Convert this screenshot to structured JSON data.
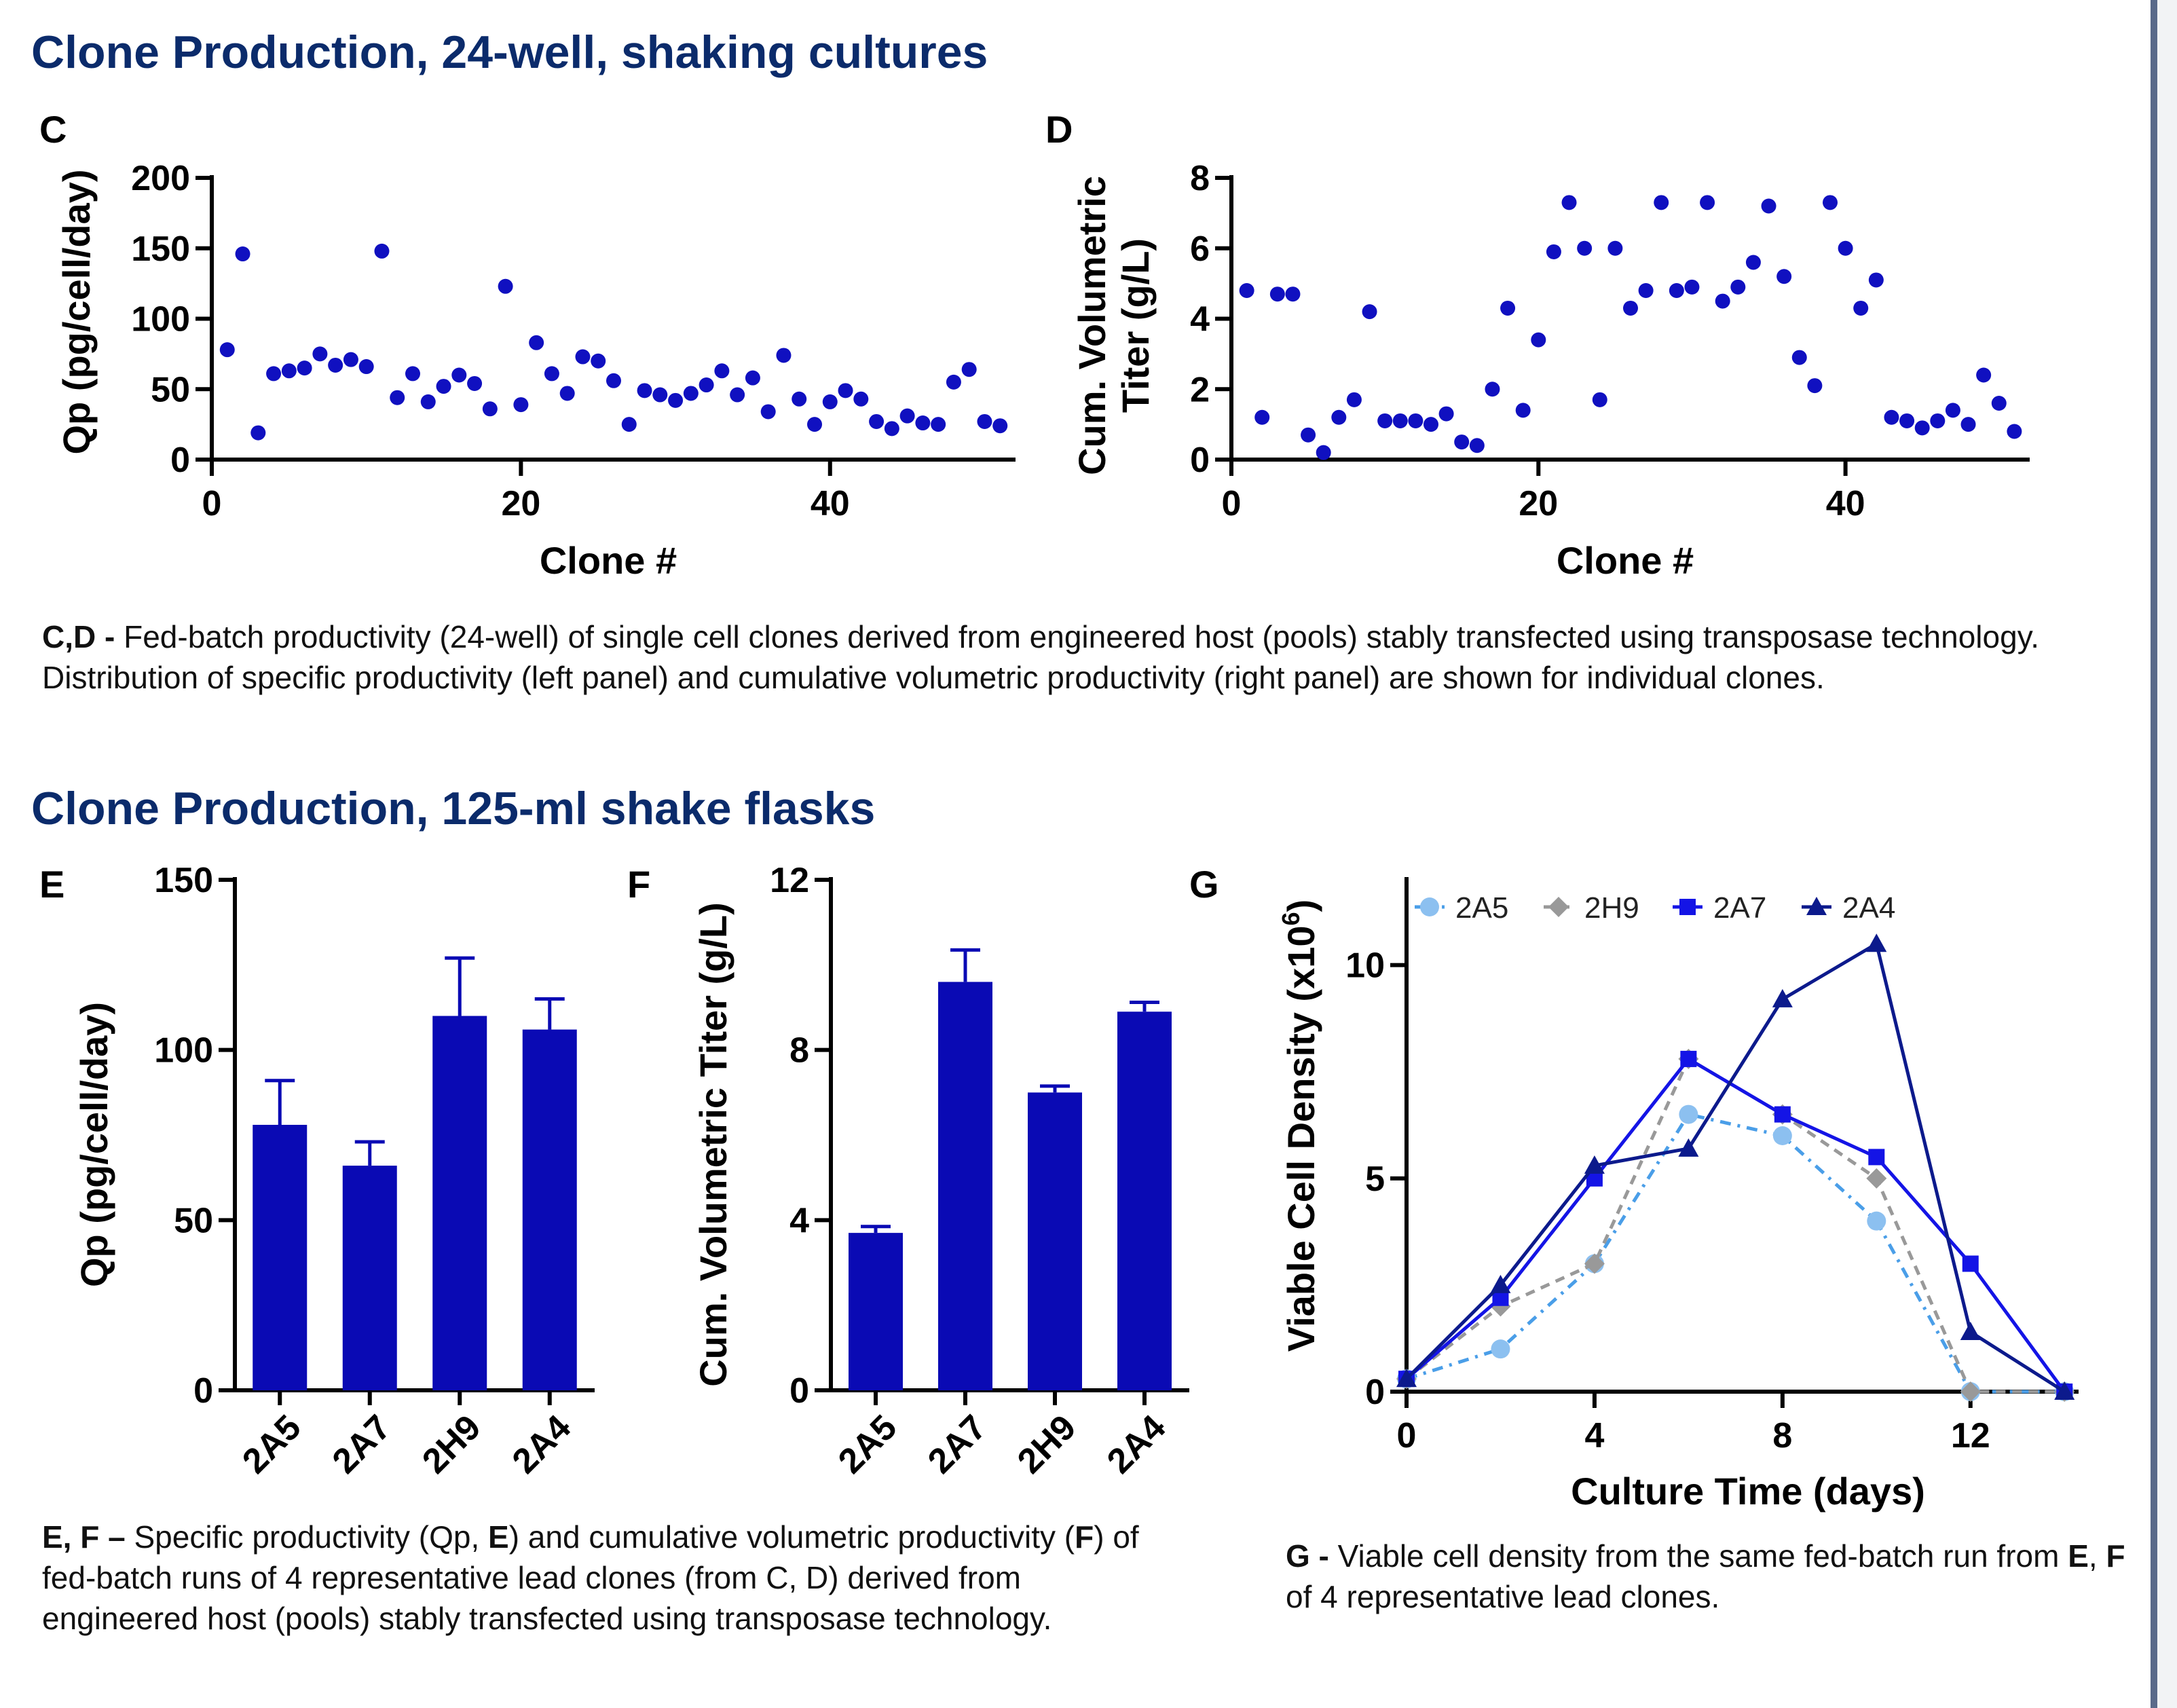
{
  "titles": {
    "top": "Clone Production, 24-well, shaking cultures",
    "bottom": "Clone Production, 125-ml shake flasks"
  },
  "captions": {
    "cd_lead": "C,D - ",
    "cd_text": "Fed-batch productivity (24-well) of single cell clones derived from engineered host (pools) stably transfected using transposase technology. Distribution of specific productivity (left panel) and cumulative volumetric productivity (right panel) are shown for individual clones.",
    "ef_lead": "E, F – ",
    "ef_t1": "Specific productivity (Qp, ",
    "ef_e": "E",
    "ef_t2": ") and cumulative volumetric productivity (",
    "ef_f": "F",
    "ef_t3": ") of fed-batch runs of 4 representative lead clones (from C, D) derived from engineered host (pools) stably transfected using transposase technology.",
    "g_lead": "G - ",
    "g_t1": "Viable cell density from the same fed-batch run from ",
    "g_e": "E",
    "g_t2": ", ",
    "g_f": "F",
    "g_t3": " of 4 representative lead clones."
  },
  "colors": {
    "title": "#0b2b6b",
    "scatter": "#1010c0",
    "bar": "#0a0ab4",
    "axis": "#000000"
  },
  "chart_data": [
    {
      "id": "C",
      "panel_label": "C",
      "type": "scatter",
      "xlabel": "Clone #",
      "ylabel": "Qp (pg/cell/day)",
      "xlim": [
        0,
        52
      ],
      "ylim": [
        0,
        200
      ],
      "xticks": [
        0,
        20,
        40
      ],
      "yticks": [
        0,
        50,
        100,
        150,
        200
      ],
      "x": [
        1,
        2,
        3,
        4,
        5,
        6,
        7,
        8,
        9,
        10,
        11,
        12,
        13,
        14,
        15,
        16,
        17,
        18,
        19,
        20,
        21,
        22,
        23,
        24,
        25,
        26,
        27,
        28,
        29,
        30,
        31,
        32,
        33,
        34,
        35,
        36,
        37,
        38,
        39,
        40,
        41,
        42,
        43,
        44,
        45,
        46,
        47,
        48,
        49,
        50,
        51
      ],
      "y": [
        78,
        146,
        19,
        61,
        63,
        65,
        75,
        67,
        71,
        66,
        148,
        44,
        61,
        41,
        52,
        60,
        54,
        36,
        123,
        39,
        83,
        61,
        47,
        73,
        70,
        56,
        25,
        49,
        46,
        42,
        47,
        53,
        63,
        46,
        58,
        34,
        74,
        43,
        25,
        41,
        49,
        43,
        27,
        22,
        31,
        26,
        25,
        55,
        64,
        27,
        24
      ]
    },
    {
      "id": "D",
      "panel_label": "D",
      "type": "scatter",
      "xlabel": "Clone #",
      "ylabel_lines": [
        "Cum. Volumetric",
        "Titer (g/L)"
      ],
      "xlim": [
        0,
        52
      ],
      "ylim": [
        0,
        8
      ],
      "xticks": [
        0,
        20,
        40
      ],
      "yticks": [
        0,
        2,
        4,
        6,
        8
      ],
      "x": [
        1,
        2,
        3,
        4,
        5,
        6,
        7,
        8,
        9,
        10,
        11,
        12,
        13,
        14,
        15,
        16,
        17,
        18,
        19,
        20,
        21,
        22,
        23,
        24,
        25,
        26,
        27,
        28,
        29,
        30,
        31,
        32,
        33,
        34,
        35,
        36,
        37,
        38,
        39,
        40,
        41,
        42,
        43,
        44,
        45,
        46,
        47,
        48,
        49,
        50,
        51
      ],
      "y": [
        4.8,
        1.2,
        4.7,
        4.7,
        0.7,
        0.2,
        1.2,
        1.7,
        4.2,
        1.1,
        1.1,
        1.1,
        1.0,
        1.3,
        0.5,
        0.4,
        2.0,
        4.3,
        1.4,
        3.4,
        5.9,
        7.3,
        6.0,
        1.7,
        6.0,
        4.3,
        4.8,
        7.3,
        4.8,
        4.9,
        7.3,
        4.5,
        4.9,
        5.6,
        7.2,
        5.2,
        2.9,
        2.1,
        7.3,
        6.0,
        4.3,
        5.1,
        1.2,
        1.1,
        0.9,
        1.1,
        1.4,
        1.0,
        2.4,
        1.6,
        0.8
      ]
    },
    {
      "id": "E",
      "panel_label": "E",
      "type": "bar",
      "ylabel": "Qp (pg/cell/day)",
      "ylim": [
        0,
        150
      ],
      "yticks": [
        0,
        50,
        100,
        150
      ],
      "categories": [
        "2A5",
        "2A7",
        "2H9",
        "2A4"
      ],
      "values": [
        78,
        66,
        110,
        106
      ],
      "errors": [
        13,
        7,
        17,
        9
      ]
    },
    {
      "id": "F",
      "panel_label": "F",
      "type": "bar",
      "ylabel": "Cum. Volumetric Titer (g/L)",
      "ylim": [
        0,
        12
      ],
      "yticks": [
        0,
        4,
        8,
        12
      ],
      "categories": [
        "2A5",
        "2A7",
        "2H9",
        "2A4"
      ],
      "values": [
        3.7,
        9.6,
        7.0,
        8.9
      ],
      "errors": [
        0.15,
        0.75,
        0.15,
        0.22
      ]
    },
    {
      "id": "G",
      "panel_label": "G",
      "type": "line",
      "xlabel": "Culture Time (days)",
      "ylabel": "Viable Cell Density (x10",
      "ylabel_sup": "6",
      "ylabel_tail": ")",
      "xlim": [
        0,
        14.3
      ],
      "ylim": [
        0,
        12
      ],
      "xticks": [
        0,
        4,
        8,
        12
      ],
      "yticks": [
        0,
        5,
        10
      ],
      "legend_position": "top",
      "series": [
        {
          "name": "2A5",
          "marker": "circle",
          "dash": "dashdot",
          "color": "#8cc0f0",
          "line_color": "#4a9ee8",
          "x": [
            0,
            2,
            4,
            6,
            8,
            10,
            12,
            14
          ],
          "y": [
            0.3,
            1.0,
            3.0,
            6.5,
            6.0,
            4.0,
            0.0,
            0.0
          ]
        },
        {
          "name": "2H9",
          "marker": "diamond",
          "dash": "dash",
          "color": "#999999",
          "line_color": "#999999",
          "x": [
            0,
            2,
            4,
            6,
            8,
            10,
            12,
            14
          ],
          "y": [
            0.3,
            2.0,
            3.0,
            7.8,
            6.5,
            5.0,
            0.0,
            0.0
          ]
        },
        {
          "name": "2A7",
          "marker": "square",
          "dash": "solid",
          "color": "#1414e6",
          "line_color": "#1414e6",
          "x": [
            0,
            2,
            4,
            6,
            8,
            10,
            12,
            14
          ],
          "y": [
            0.3,
            2.2,
            5.0,
            7.8,
            6.5,
            5.5,
            3.0,
            0.0
          ]
        },
        {
          "name": "2A4",
          "marker": "triangle",
          "dash": "solid",
          "color": "#0c1a8c",
          "line_color": "#0c1a8c",
          "x": [
            0,
            2,
            4,
            6,
            8,
            10,
            12,
            14
          ],
          "y": [
            0.3,
            2.5,
            5.3,
            5.7,
            9.2,
            10.5,
            1.4,
            0.0
          ]
        }
      ]
    }
  ]
}
